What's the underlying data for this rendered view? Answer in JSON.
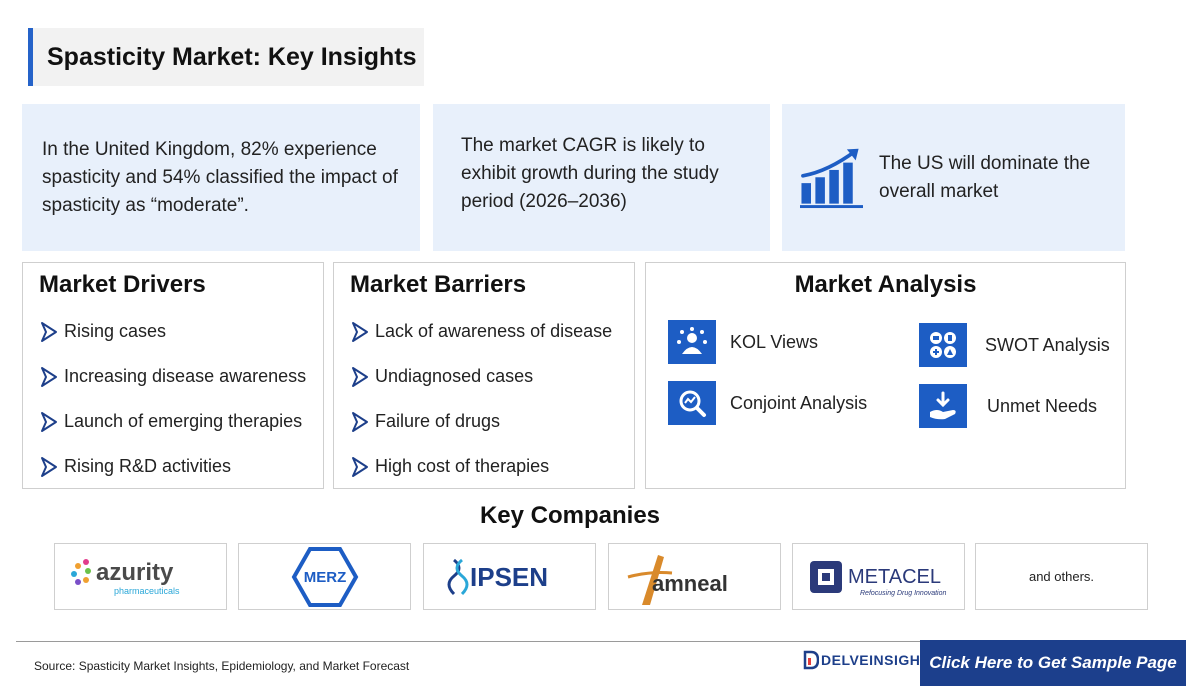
{
  "title": "Spasticity Market: Key Insights",
  "insights": [
    "In the United Kingdom, 82% experience spasticity and 54% classified the impact of spasticity as “moderate”.",
    "The market CAGR is likely to exhibit growth during the study period (2026–2036)",
    "The US will dominate the overall market"
  ],
  "drivers": {
    "title": "Market Drivers",
    "items": [
      "Rising cases",
      "Increasing disease awareness",
      "Launch of emerging therapies",
      "Rising R&D activities"
    ]
  },
  "barriers": {
    "title": "Market Barriers",
    "items": [
      "Lack of awareness of disease",
      "Undiagnosed cases",
      "Failure of drugs",
      "High cost of therapies"
    ]
  },
  "analysis": {
    "title": "Market Analysis",
    "items": [
      "KOL Views",
      "SWOT Analysis",
      "Conjoint Analysis",
      "Unmet Needs"
    ]
  },
  "companies": {
    "title": "Key Companies",
    "logos": [
      {
        "name": "azurity",
        "sub": "pharmaceuticals"
      },
      {
        "name": "MERZ"
      },
      {
        "name": "IPSEN"
      },
      {
        "name": "amneal"
      },
      {
        "name": "METACEL",
        "sub": "Refocusing Drug Innovation"
      }
    ],
    "others": "and others."
  },
  "footer": {
    "source": "Source: Spasticity Market Insights, Epidemiology, and Market Forecast",
    "brand": "DELVEINSIGHT",
    "cta": "Click Here to Get Sample Page"
  },
  "colors": {
    "accent": "#1d5dc4",
    "panel_bg": "#e8f0fb",
    "cta_bg": "#1c3f8c"
  }
}
